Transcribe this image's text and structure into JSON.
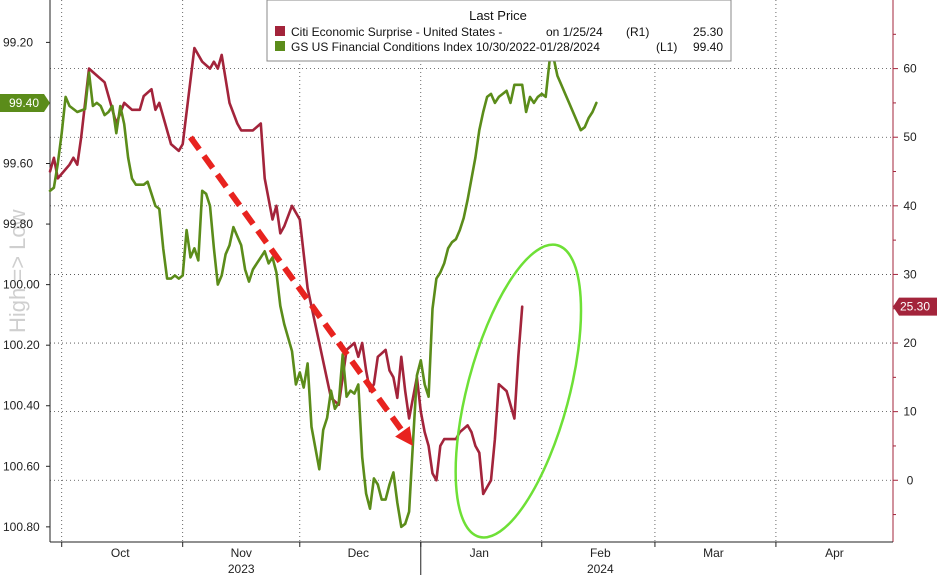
{
  "chart_data": {
    "type": "line",
    "legend": {
      "title": "Last Price",
      "entries": [
        {
          "name": "Citi Economic Surprise - United States -",
          "date": "on 1/25/24",
          "axis": "(R1)",
          "value": "25.30",
          "color": "#a3243b"
        },
        {
          "name": "GS US Financial Conditions Index 10/30/2022-01/28/2024",
          "date": "",
          "axis": "(L1)",
          "value": "99.40",
          "color": "#5b8c1a"
        }
      ],
      "placement": "top-center"
    },
    "left_axis": {
      "label": "High => Low",
      "inverted": true,
      "range": [
        99.06,
        100.85
      ],
      "ticks": [
        "99.20",
        "99.40",
        "99.60",
        "99.80",
        "100.00",
        "100.20",
        "100.40",
        "100.60",
        "100.80"
      ],
      "badge": "99.40"
    },
    "right_axis": {
      "range": [
        -9,
        70
      ],
      "ticks": [
        "0",
        "10",
        "20",
        "30",
        "40",
        "50",
        "60"
      ],
      "badge": "25.30"
    },
    "x_axis": {
      "range": [
        0,
        216
      ],
      "month_labels": [
        {
          "label": "Oct",
          "day": 18
        },
        {
          "label": "Nov",
          "day": 49
        },
        {
          "label": "Dec",
          "day": 79
        },
        {
          "label": "Jan",
          "day": 110
        },
        {
          "label": "Feb",
          "day": 141
        },
        {
          "label": "Mar",
          "day": 170
        },
        {
          "label": "Apr",
          "day": 201
        }
      ],
      "month_boundaries": [
        3,
        34,
        64,
        95,
        126,
        155,
        186
      ],
      "year_labels": [
        {
          "label": "2023",
          "day": 49
        },
        {
          "label": "2024",
          "day": 141
        }
      ],
      "year_divider_day": 95
    },
    "grid": true,
    "series": [
      {
        "name": "Citi Economic Surprise - United States -",
        "axis": "right",
        "color": "#a3243b",
        "points": [
          [
            0,
            45
          ],
          [
            1,
            47
          ],
          [
            2,
            44
          ],
          [
            5,
            46
          ],
          [
            6,
            47
          ],
          [
            7,
            46
          ],
          [
            8,
            50
          ],
          [
            10,
            60
          ],
          [
            12,
            59
          ],
          [
            14,
            58
          ],
          [
            17,
            52
          ],
          [
            19,
            55
          ],
          [
            21,
            54
          ],
          [
            23,
            54
          ],
          [
            24,
            56
          ],
          [
            26,
            57
          ],
          [
            27,
            54
          ],
          [
            28,
            55
          ],
          [
            29,
            53
          ],
          [
            31,
            49
          ],
          [
            33,
            48
          ],
          [
            34,
            49
          ],
          [
            37,
            63
          ],
          [
            39,
            61
          ],
          [
            41,
            60
          ],
          [
            42,
            61
          ],
          [
            43,
            60
          ],
          [
            44,
            62
          ],
          [
            46,
            55
          ],
          [
            48,
            52
          ],
          [
            49,
            51
          ],
          [
            52,
            51
          ],
          [
            54,
            52
          ],
          [
            55,
            44
          ],
          [
            57,
            38
          ],
          [
            58,
            40
          ],
          [
            59,
            36
          ],
          [
            60,
            37
          ],
          [
            62,
            40
          ],
          [
            64,
            38
          ],
          [
            66,
            28
          ],
          [
            69,
            20
          ],
          [
            72,
            12
          ],
          [
            74,
            11
          ],
          [
            75,
            15
          ],
          [
            76,
            19
          ],
          [
            78,
            20
          ],
          [
            79,
            18
          ],
          [
            80,
            20
          ],
          [
            81,
            16
          ],
          [
            82,
            13
          ],
          [
            83,
            14
          ],
          [
            84,
            18
          ],
          [
            86,
            19
          ],
          [
            87,
            16
          ],
          [
            88,
            15
          ],
          [
            89,
            12
          ],
          [
            90,
            18
          ],
          [
            91,
            13
          ],
          [
            92,
            9
          ],
          [
            94,
            15
          ],
          [
            95,
            10
          ],
          [
            96,
            7
          ],
          [
            97,
            5
          ],
          [
            98,
            1
          ],
          [
            99,
            0
          ],
          [
            100,
            5
          ],
          [
            101,
            6
          ],
          [
            103,
            6
          ],
          [
            104,
            6
          ],
          [
            105,
            7
          ],
          [
            107,
            8
          ],
          [
            108,
            7
          ],
          [
            109,
            5
          ],
          [
            110,
            4
          ],
          [
            111,
            -2
          ],
          [
            112,
            -1
          ],
          [
            113,
            0
          ],
          [
            114,
            6
          ],
          [
            115,
            14
          ],
          [
            117,
            13
          ],
          [
            119,
            9
          ],
          [
            120,
            18
          ],
          [
            121,
            25.3
          ]
        ]
      },
      {
        "name": "GS US Financial Conditions Index 10/30/2022-01/28/2024",
        "axis": "left",
        "color": "#5b8c1a",
        "points": [
          [
            0,
            99.69
          ],
          [
            1,
            99.68
          ],
          [
            2,
            99.6
          ],
          [
            3,
            99.5
          ],
          [
            4,
            99.38
          ],
          [
            5,
            99.41
          ],
          [
            6,
            99.42
          ],
          [
            7,
            99.43
          ],
          [
            9,
            99.42
          ],
          [
            10,
            99.3
          ],
          [
            11,
            99.41
          ],
          [
            12,
            99.4
          ],
          [
            13,
            99.41
          ],
          [
            14,
            99.44
          ],
          [
            15,
            99.43
          ],
          [
            16,
            99.41
          ],
          [
            17,
            99.5
          ],
          [
            18,
            99.41
          ],
          [
            19,
            99.47
          ],
          [
            20,
            99.58
          ],
          [
            21,
            99.65
          ],
          [
            22,
            99.67
          ],
          [
            24,
            99.67
          ],
          [
            25,
            99.66
          ],
          [
            27,
            99.74
          ],
          [
            28,
            99.75
          ],
          [
            29,
            99.88
          ],
          [
            30,
            99.98
          ],
          [
            31,
            99.98
          ],
          [
            32,
            99.97
          ],
          [
            33,
            99.98
          ],
          [
            34,
            99.97
          ],
          [
            35,
            99.82
          ],
          [
            36,
            99.91
          ],
          [
            37,
            99.88
          ],
          [
            38,
            99.92
          ],
          [
            39,
            99.69
          ],
          [
            40,
            99.7
          ],
          [
            41,
            99.74
          ],
          [
            42,
            99.88
          ],
          [
            43,
            100.0
          ],
          [
            44,
            99.97
          ],
          [
            45,
            99.9
          ],
          [
            46,
            99.87
          ],
          [
            47,
            99.81
          ],
          [
            48,
            99.84
          ],
          [
            49,
            99.87
          ],
          [
            50,
            99.95
          ],
          [
            51,
            99.99
          ],
          [
            52,
            99.95
          ],
          [
            53,
            99.93
          ],
          [
            54,
            99.91
          ],
          [
            55,
            99.89
          ],
          [
            56,
            99.93
          ],
          [
            57,
            99.91
          ],
          [
            58,
            99.96
          ],
          [
            59,
            100.07
          ],
          [
            60,
            100.13
          ],
          [
            62,
            100.22
          ],
          [
            63,
            100.33
          ],
          [
            64,
            100.29
          ],
          [
            65,
            100.34
          ],
          [
            66,
            100.26
          ],
          [
            67,
            100.47
          ],
          [
            68,
            100.54
          ],
          [
            69,
            100.61
          ],
          [
            70,
            100.48
          ],
          [
            71,
            100.44
          ],
          [
            72,
            100.35
          ],
          [
            73,
            100.41
          ],
          [
            74,
            100.39
          ],
          [
            75,
            100.23
          ],
          [
            76,
            100.37
          ],
          [
            77,
            100.35
          ],
          [
            78,
            100.36
          ],
          [
            79,
            100.33
          ],
          [
            80,
            100.57
          ],
          [
            81,
            100.69
          ],
          [
            82,
            100.74
          ],
          [
            83,
            100.64
          ],
          [
            84,
            100.66
          ],
          [
            85,
            100.71
          ],
          [
            86,
            100.71
          ],
          [
            87,
            100.66
          ],
          [
            88,
            100.62
          ],
          [
            89,
            100.72
          ],
          [
            90,
            100.8
          ],
          [
            91,
            100.79
          ],
          [
            92,
            100.75
          ],
          [
            93,
            100.52
          ],
          [
            94,
            100.3
          ],
          [
            95,
            100.25
          ],
          [
            96,
            100.33
          ],
          [
            97,
            100.37
          ],
          [
            98,
            100.08
          ],
          [
            99,
            99.98
          ],
          [
            100,
            99.96
          ],
          [
            101,
            99.93
          ],
          [
            102,
            99.88
          ],
          [
            103,
            99.86
          ],
          [
            104,
            99.85
          ],
          [
            105,
            99.82
          ],
          [
            106,
            99.78
          ],
          [
            107,
            99.72
          ],
          [
            108,
            99.65
          ],
          [
            109,
            99.58
          ],
          [
            110,
            99.49
          ],
          [
            111,
            99.43
          ],
          [
            112,
            99.38
          ],
          [
            113,
            99.37
          ],
          [
            114,
            99.4
          ],
          [
            115,
            99.38
          ],
          [
            116,
            99.37
          ],
          [
            117,
            99.36
          ],
          [
            118,
            99.4
          ],
          [
            119,
            99.34
          ],
          [
            120,
            99.34
          ],
          [
            121,
            99.34
          ],
          [
            122,
            99.43
          ],
          [
            123,
            99.38
          ],
          [
            124,
            99.4
          ],
          [
            125,
            99.38
          ],
          [
            126,
            99.37
          ],
          [
            127,
            99.38
          ],
          [
            128,
            99.26
          ],
          [
            129,
            99.25
          ],
          [
            130,
            99.31
          ],
          [
            131,
            99.34
          ],
          [
            132,
            99.37
          ],
          [
            133,
            99.4
          ],
          [
            134,
            99.43
          ],
          [
            135,
            99.46
          ],
          [
            136,
            99.49
          ],
          [
            137,
            99.48
          ],
          [
            138,
            99.45
          ],
          [
            139,
            99.43
          ],
          [
            140,
            99.4
          ]
        ]
      }
    ],
    "annotations": [
      {
        "type": "dashed-arrow",
        "color": "#e8231f",
        "from_day": 36,
        "from_r": 50,
        "to_day": 93,
        "to_r": 5
      },
      {
        "type": "ellipse",
        "color": "#6ee036",
        "center_day": 120,
        "center_r": 13,
        "width_days": 26,
        "height_r": 44,
        "rotation_deg": 15
      }
    ]
  }
}
